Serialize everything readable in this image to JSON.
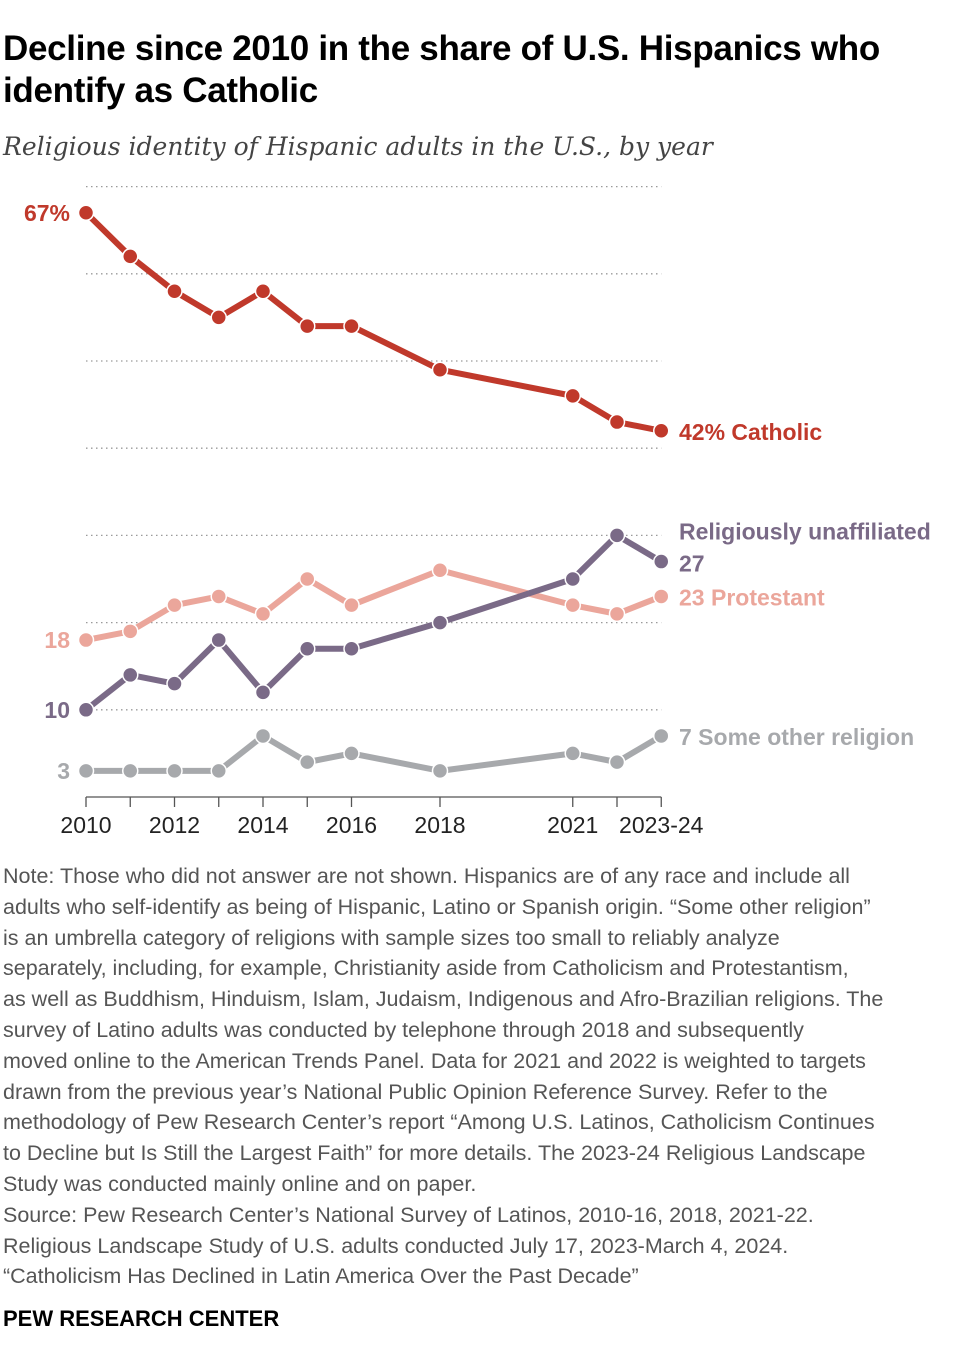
{
  "chart_data": {
    "type": "line",
    "title": "Decline since 2010 in the share of U.S. Hispanics who identify as Catholic",
    "subtitle": "Religious identity of Hispanic adults in the U.S., by year",
    "x": [
      2010,
      2011,
      2012,
      2013,
      2014,
      2015,
      2016,
      2018,
      2021,
      2022,
      2023
    ],
    "x_tick_labels": [
      "2010",
      "2012",
      "2014",
      "2016",
      "2018",
      "2021",
      "2023-24"
    ],
    "x_tick_values": [
      2010,
      2012,
      2014,
      2016,
      2018,
      2021,
      2023
    ],
    "ylim": [
      0,
      70
    ],
    "gridlines": [
      10,
      20,
      30,
      40,
      50,
      60,
      70
    ],
    "series": [
      {
        "name": "Catholic",
        "color": "#C0392B",
        "values": [
          67,
          62,
          58,
          55,
          58,
          54,
          54,
          49,
          46,
          43,
          42
        ],
        "start_label": "67%",
        "end_label": "42% Catholic"
      },
      {
        "name": "Protestant",
        "color": "#EBA69B",
        "values": [
          18,
          19,
          22,
          23,
          21,
          25,
          22,
          26,
          22,
          21,
          23
        ],
        "start_label": "18",
        "end_label": "23 Protestant"
      },
      {
        "name": "Religiously unaffiliated",
        "color": "#7A6A87",
        "values": [
          10,
          14,
          13,
          18,
          12,
          17,
          17,
          20,
          25,
          30,
          27
        ],
        "start_label": "10",
        "end_label": "Religiously unaffiliated",
        "end_label2": "27"
      },
      {
        "name": "Some other religion",
        "color": "#A7A9AC",
        "values": [
          3,
          3,
          3,
          3,
          7,
          4,
          5,
          3,
          5,
          4,
          7
        ],
        "start_label": "3",
        "end_label": "7 Some other religion"
      }
    ]
  },
  "note_lines": [
    "Note: Those who did not answer are not shown. Hispanics are of any race and include all",
    "adults who self-identify as being of Hispanic, Latino or Spanish origin. “Some other religion”",
    "is an umbrella category of religions with sample sizes too small to reliably analyze",
    "separately, including, for example, Christianity aside from Catholicism and Protestantism,",
    "as well as Buddhism, Hinduism, Islam, Judaism, Indigenous and Afro-Brazilian religions. The",
    "survey of Latino adults was conducted by telephone through 2018 and subsequently",
    "moved online to the American Trends Panel. Data for 2021 and 2022 is weighted to targets",
    "drawn from the previous year’s National Public Opinion Reference Survey. Refer to the",
    "methodology of Pew Research Center’s report “Among U.S. Latinos, Catholicism Continues",
    "to Decline but Is Still the Largest Faith” for more details. The 2023-24 Religious Landscape",
    "Study was conducted mainly online and on paper.",
    "Source: Pew Research Center’s National Survey of Latinos, 2010-16, 2018, 2021-22.",
    "Religious Landscape Study of U.S. adults conducted July 17, 2023-March 4, 2024.",
    "“Catholicism Has Declined in Latin America Over the Past Decade”"
  ],
  "brand": "PEW RESEARCH CENTER"
}
